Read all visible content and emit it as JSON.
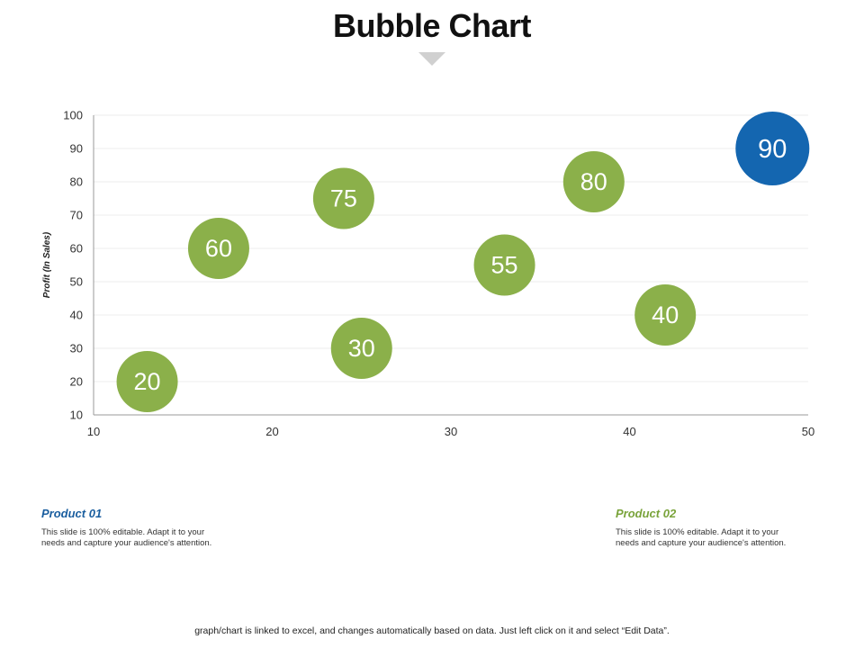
{
  "slide": {
    "title": "Bubble Chart",
    "footer": "graph/chart is linked to excel, and changes automatically based on data. Just left click on it and select “Edit Data”."
  },
  "colors": {
    "green": "#8bb04a",
    "blue": "#1466b0",
    "grid": "#ececec",
    "axis": "#9a9a9a"
  },
  "products": [
    {
      "title": "Product 01",
      "color": "#1a5e9f",
      "desc_line1": "This slide is 100% editable.  Adapt it to your",
      "desc_line2": "needs and capture your audience's attention."
    },
    {
      "title": "Product 02",
      "color": "#79a33a",
      "desc_line1": "This slide is 100% editable.  Adapt it to your",
      "desc_line2": "needs and capture your audience's attention."
    }
  ],
  "chart_data": {
    "type": "scatter",
    "title": "Bubble Chart",
    "xlabel": "",
    "ylabel": "Profit  (In Sales)",
    "xlim": [
      10,
      50
    ],
    "ylim": [
      10,
      100
    ],
    "x_ticks": [
      10,
      20,
      30,
      40,
      50
    ],
    "y_ticks": [
      10,
      20,
      30,
      40,
      50,
      60,
      70,
      80,
      90,
      100
    ],
    "grid": true,
    "series": [
      {
        "name": "Product 01",
        "color": "#1466b0",
        "points": [
          {
            "x": 48,
            "y": 90,
            "label": "90"
          }
        ]
      },
      {
        "name": "Product 02",
        "color": "#8bb04a",
        "points": [
          {
            "x": 13,
            "y": 20,
            "label": "20"
          },
          {
            "x": 17,
            "y": 60,
            "label": "60"
          },
          {
            "x": 24,
            "y": 75,
            "label": "75"
          },
          {
            "x": 25,
            "y": 30,
            "label": "30"
          },
          {
            "x": 33,
            "y": 55,
            "label": "55"
          },
          {
            "x": 38,
            "y": 80,
            "label": "80"
          },
          {
            "x": 42,
            "y": 40,
            "label": "40"
          }
        ]
      }
    ]
  }
}
